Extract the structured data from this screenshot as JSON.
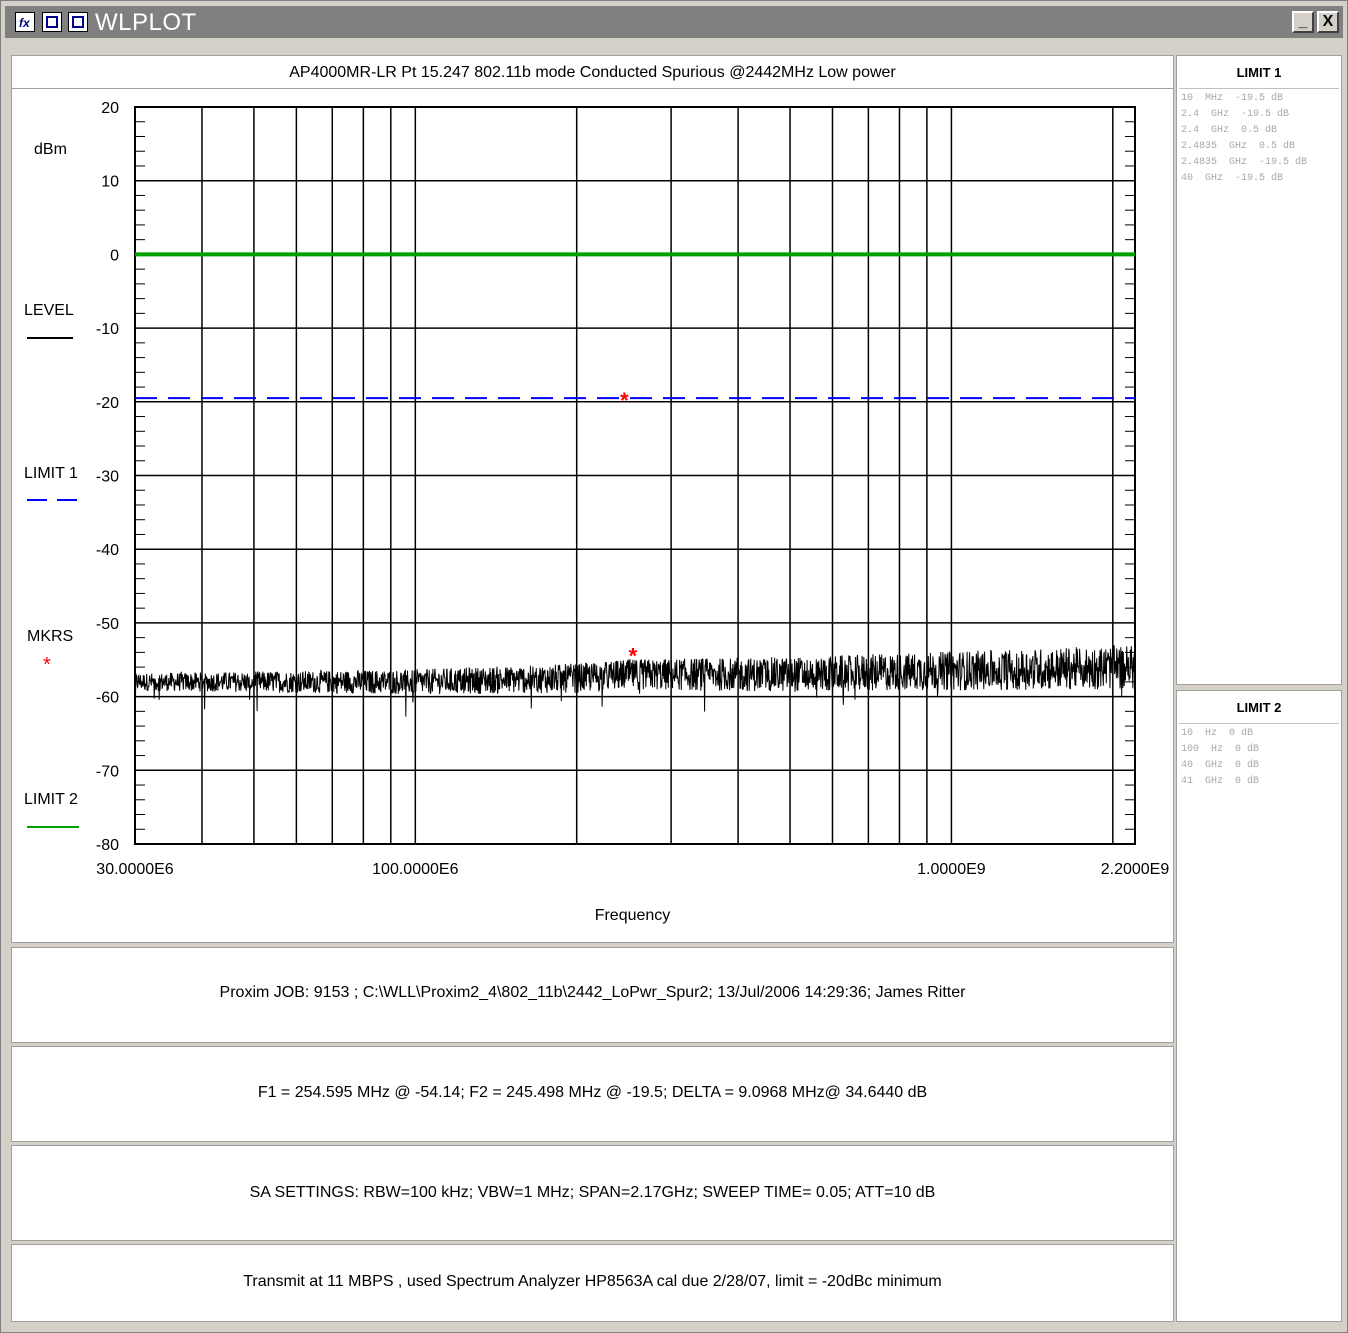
{
  "window": {
    "title": "WLPLOT",
    "icons": [
      "fx-icon",
      "window-icon",
      "window-icon"
    ],
    "controls": {
      "minimize": "_",
      "close": "X"
    }
  },
  "chart": {
    "title": "AP4000MR-LR Pt 15.247  802.11b mode Conducted Spurious  @2442MHz Low power",
    "ylabel": "dBm",
    "xlabel": "Frequency",
    "legend": [
      {
        "label": "LEVEL",
        "color": "#000000",
        "style": "solid"
      },
      {
        "label": "LIMIT 1",
        "color": "#0000ff",
        "style": "dashed"
      },
      {
        "label": "MKRS",
        "color": "#ff0000",
        "style": "asterisk"
      },
      {
        "label": "LIMIT 2",
        "color": "#00a000",
        "style": "solid"
      }
    ]
  },
  "chart_data": {
    "type": "line",
    "x_scale": "log",
    "xlim": [
      30000000,
      2200000000
    ],
    "ylim": [
      -80,
      20
    ],
    "y_ticks": [
      20,
      10,
      0,
      -10,
      -20,
      -30,
      -40,
      -50,
      -60,
      -70,
      -80
    ],
    "x_tick_labels": [
      {
        "value": 30000000,
        "label": "30.0000E6"
      },
      {
        "value": 100000000,
        "label": "100.0000E6"
      },
      {
        "value": 1000000000,
        "label": "1.0000E9"
      },
      {
        "value": 2200000000,
        "label": "2.2000E9"
      }
    ],
    "grid": true,
    "series": [
      {
        "name": "LIMIT 1",
        "color": "#0000ff",
        "style": "dashed",
        "x": [
          30000000,
          2200000000
        ],
        "y": [
          -19.5,
          -19.5
        ]
      },
      {
        "name": "LIMIT 2",
        "color": "#00a000",
        "style": "solid",
        "x": [
          30000000,
          2200000000
        ],
        "y": [
          0,
          0
        ]
      },
      {
        "name": "LEVEL",
        "color": "#000000",
        "style": "noise",
        "x": [
          30000000,
          100000000,
          200000000,
          250000000,
          500000000,
          1000000000,
          2200000000
        ],
        "y": [
          -58,
          -58,
          -57.5,
          -57,
          -57,
          -56.5,
          -56
        ]
      }
    ],
    "markers": [
      {
        "name": "F1",
        "x": 254595000,
        "y": -54.14
      },
      {
        "name": "F2",
        "x": 245498000,
        "y": -19.5
      }
    ]
  },
  "info": {
    "job_line": "Proxim  JOB:  9153    ;  C:\\WLL\\Proxim2_4\\802_11b\\2442_LoPwr_Spur2;     13/Jul/2006 14:29:36; James Ritter",
    "marker_line": "F1 = 254.595 MHz @ -54.14;    F2 = 245.498 MHz @ -19.5;    DELTA = 9.0968 MHz@ 34.6440 dB",
    "sa_line": "SA SETTINGS: RBW=100 kHz; VBW=1 MHz; SPAN=2.17GHz; SWEEP TIME= 0.05; ATT=10 dB",
    "notes_line": "Transmit at 11 MBPS , used Spectrum Analyzer HP8563A cal due 2/28/07, limit = -20dBc minimum"
  },
  "limit1": {
    "header": "LIMIT 1",
    "rows": [
      "10  MHz  -19.5 dB",
      "2.4  GHz  -19.5 dB",
      "2.4  GHz  0.5 dB",
      "2.4835  GHz  0.5 dB",
      "2.4835  GHz  -19.5 dB",
      "40  GHz  -19.5 dB"
    ]
  },
  "limit2": {
    "header": "LIMIT 2",
    "rows": [
      "10  Hz  0 dB",
      "100  Hz  0 dB",
      "40  GHz  0 dB",
      "41  GHz  0 dB"
    ]
  }
}
